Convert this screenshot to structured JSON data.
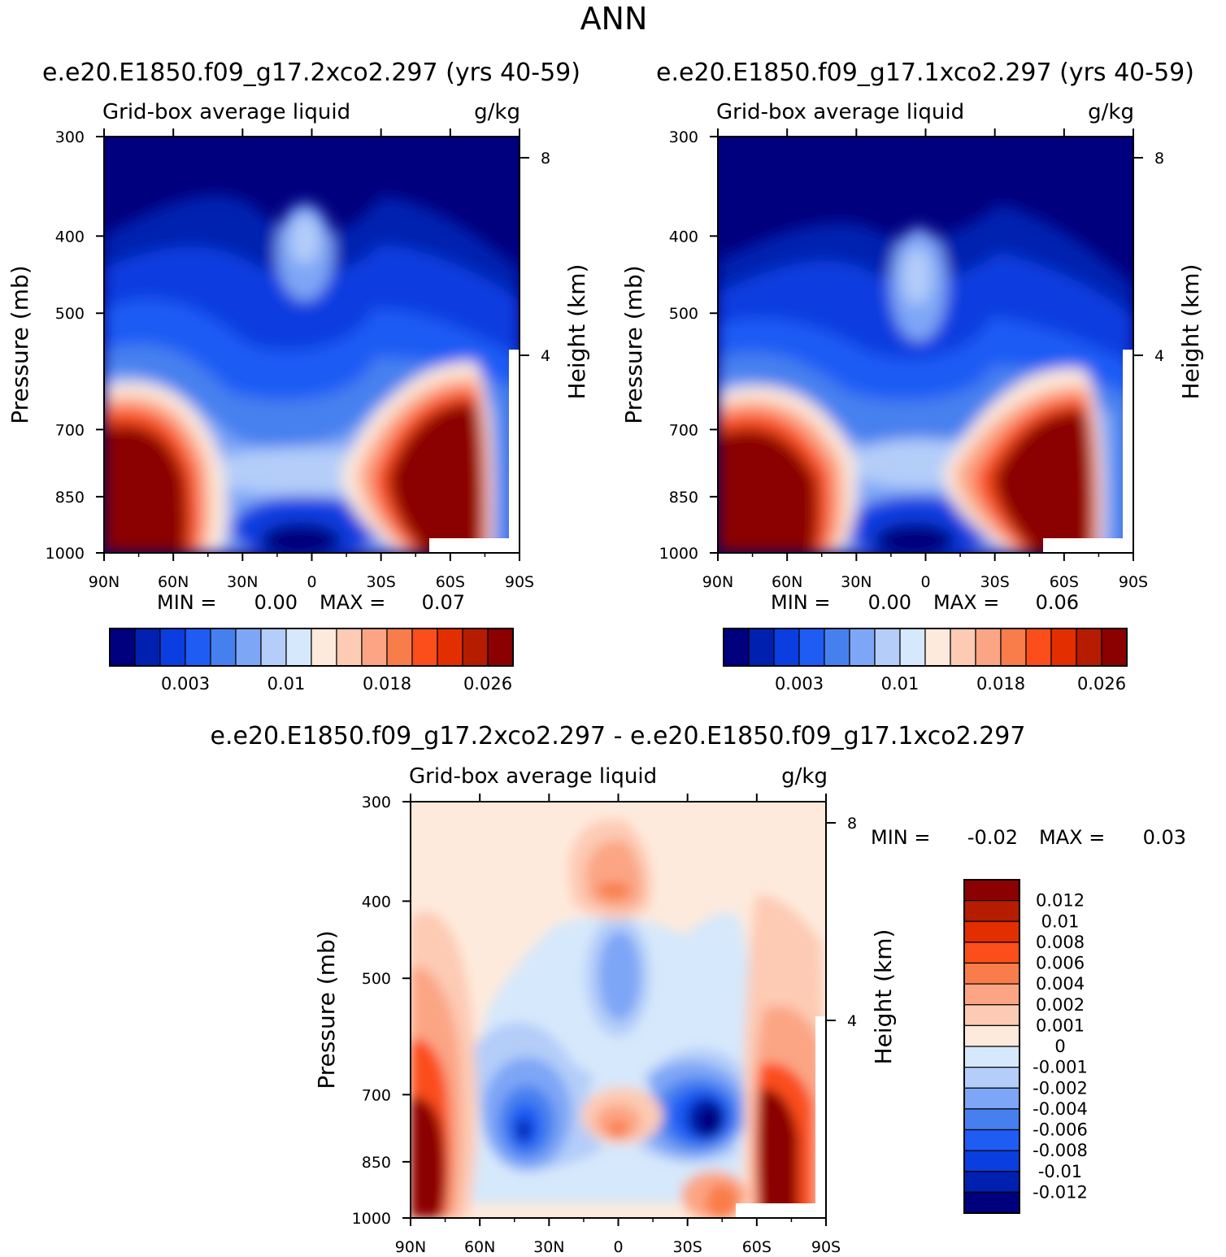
{
  "figure_title": "ANN",
  "chart_data": [
    {
      "id": "panel1",
      "type": "heatmap",
      "case_title": "e.e20.E1850.f09_g17.2xco2.297 (yrs 40-59)",
      "variable": "Grid-box average liquid",
      "units": "g/kg",
      "ylabel": "Pressure (mb)",
      "y2label": "Height (km)",
      "y_ticks": [
        "300",
        "400",
        "500",
        "700",
        "850",
        "1000"
      ],
      "y_tick_values": [
        300,
        400,
        500,
        700,
        850,
        1000
      ],
      "y2_ticks": [
        "8",
        "4"
      ],
      "x_ticks": [
        "90N",
        "60N",
        "30N",
        "0",
        "30S",
        "60S",
        "90S"
      ],
      "x_tick_values": [
        90,
        60,
        30,
        0,
        -30,
        -60,
        -90
      ],
      "min_label": "MIN =",
      "min_value": "0.00",
      "max_label": "MAX =",
      "max_value": "0.07",
      "colorbar_labels": [
        "0.003",
        "0.01",
        "0.018",
        "0.026"
      ],
      "colorbar_colors": [
        "#00007e",
        "#0020b0",
        "#0a3ee0",
        "#1f5cf4",
        "#4680ef",
        "#7ea6f6",
        "#b4cdf9",
        "#d6e8fb",
        "#feeadc",
        "#fdcab4",
        "#fba584",
        "#f97d4a",
        "#fb4e1a",
        "#e32e00",
        "#b51c00",
        "#8b0000"
      ]
    },
    {
      "id": "panel2",
      "type": "heatmap",
      "case_title": "e.e20.E1850.f09_g17.1xco2.297 (yrs 40-59)",
      "variable": "Grid-box average liquid",
      "units": "g/kg",
      "ylabel": "Pressure (mb)",
      "y2label": "Height (km)",
      "y_ticks": [
        "300",
        "400",
        "500",
        "700",
        "850",
        "1000"
      ],
      "y_tick_values": [
        300,
        400,
        500,
        700,
        850,
        1000
      ],
      "y2_ticks": [
        "8",
        "4"
      ],
      "x_ticks": [
        "90N",
        "60N",
        "30N",
        "0",
        "30S",
        "60S",
        "90S"
      ],
      "x_tick_values": [
        90,
        60,
        30,
        0,
        -30,
        -60,
        -90
      ],
      "min_label": "MIN =",
      "min_value": "0.00",
      "max_label": "MAX =",
      "max_value": "0.06",
      "colorbar_labels": [
        "0.003",
        "0.01",
        "0.018",
        "0.026"
      ],
      "colorbar_colors": [
        "#00007e",
        "#0020b0",
        "#0a3ee0",
        "#1f5cf4",
        "#4680ef",
        "#7ea6f6",
        "#b4cdf9",
        "#d6e8fb",
        "#feeadc",
        "#fdcab4",
        "#fba584",
        "#f97d4a",
        "#fb4e1a",
        "#e32e00",
        "#b51c00",
        "#8b0000"
      ]
    },
    {
      "id": "panel3",
      "type": "heatmap",
      "case_title": "e.e20.E1850.f09_g17.2xco2.297 - e.e20.E1850.f09_g17.1xco2.297",
      "variable": "Grid-box average liquid",
      "units": "g/kg",
      "ylabel": "Pressure (mb)",
      "y2label": "Height (km)",
      "y_ticks": [
        "300",
        "400",
        "500",
        "700",
        "850",
        "1000"
      ],
      "y_tick_values": [
        300,
        400,
        500,
        700,
        850,
        1000
      ],
      "y2_ticks": [
        "8",
        "4"
      ],
      "x_ticks": [
        "90N",
        "60N",
        "30N",
        "0",
        "30S",
        "60S",
        "90S"
      ],
      "x_tick_values": [
        90,
        60,
        30,
        0,
        -30,
        -60,
        -90
      ],
      "min_label": "MIN =",
      "min_value": "-0.02",
      "max_label": "MAX =",
      "max_value": "0.03",
      "colorbar_labels": [
        "0.012",
        "0.01",
        "0.008",
        "0.006",
        "0.004",
        "0.002",
        "0.001",
        "0",
        "-0.001",
        "-0.002",
        "-0.004",
        "-0.006",
        "-0.008",
        "-0.01",
        "-0.012"
      ],
      "colorbar_colors": [
        "#8b0000",
        "#b51c00",
        "#e32e00",
        "#fb4e1a",
        "#f97d4a",
        "#fba584",
        "#fdcab4",
        "#feeadc",
        "#d6e8fb",
        "#b4cdf9",
        "#7ea6f6",
        "#4680ef",
        "#1f5cf4",
        "#0a3ee0",
        "#0020b0",
        "#00007e"
      ]
    }
  ]
}
